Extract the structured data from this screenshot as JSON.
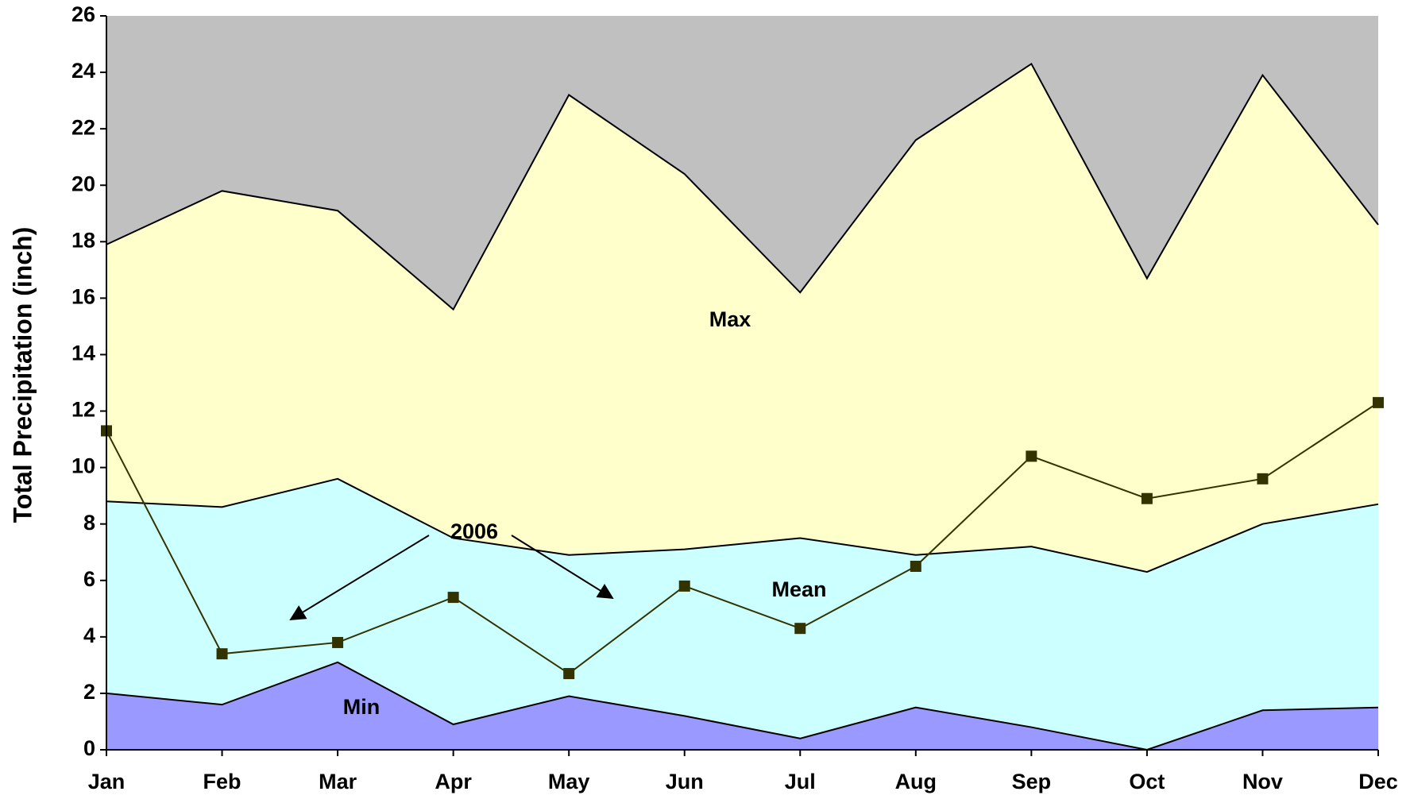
{
  "chart_data": {
    "type": "area",
    "y_label": "Total Precipitation (inch)",
    "categories": [
      "Jan",
      "Feb",
      "Mar",
      "Apr",
      "May",
      "Jun",
      "Jul",
      "Aug",
      "Sep",
      "Oct",
      "Nov",
      "Dec"
    ],
    "series": [
      {
        "name": "Max",
        "type": "area",
        "color": "#ffffcc",
        "values": [
          17.9,
          19.8,
          19.1,
          15.6,
          23.2,
          20.4,
          16.2,
          21.6,
          24.3,
          16.7,
          23.9,
          18.6
        ]
      },
      {
        "name": "Mean",
        "type": "area",
        "color": "#ccffff",
        "values": [
          8.8,
          8.6,
          9.6,
          7.5,
          6.9,
          7.1,
          7.5,
          6.9,
          7.2,
          6.3,
          8.0,
          8.7
        ]
      },
      {
        "name": "Min",
        "type": "area",
        "color": "#9999ff",
        "values": [
          2.0,
          1.6,
          3.1,
          0.9,
          1.9,
          1.2,
          0.4,
          1.5,
          0.8,
          0.0,
          1.4,
          1.5
        ]
      },
      {
        "name": "2006",
        "type": "line",
        "color": "#333300",
        "values": [
          11.3,
          3.4,
          3.8,
          5.4,
          2.7,
          5.8,
          4.3,
          6.5,
          10.4,
          8.9,
          9.6,
          12.3
        ]
      }
    ],
    "plot_background": "#c0c0c0",
    "ylim": [
      0,
      26
    ],
    "yticks": [
      0,
      2,
      4,
      6,
      8,
      10,
      12,
      14,
      16,
      18,
      20,
      22,
      24,
      26
    ]
  }
}
